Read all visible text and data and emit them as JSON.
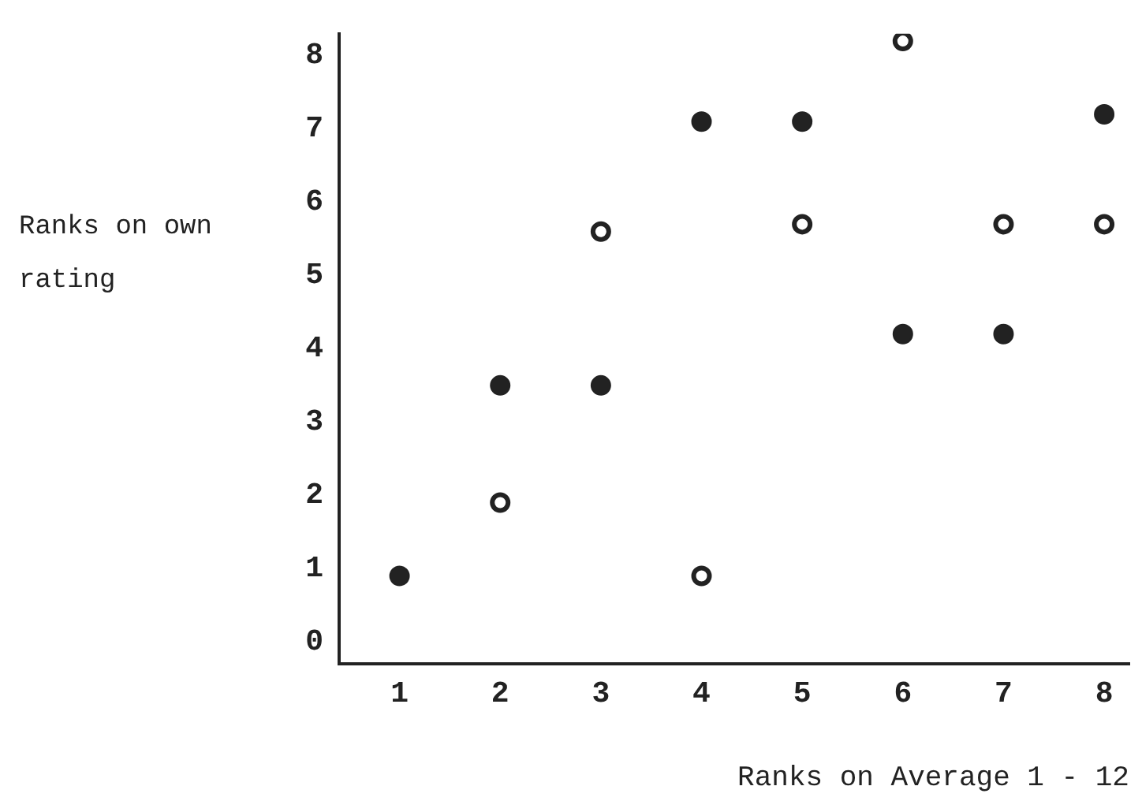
{
  "chart_data": {
    "type": "scatter",
    "xlabel": "Ranks on Average 1 - 12",
    "ylabel": "Ranks on own rating",
    "xlim": [
      0.4,
      8.25
    ],
    "xticks": [
      1,
      2,
      3,
      4,
      5,
      6,
      7,
      8
    ],
    "ylim": [
      -0.3,
      8.3
    ],
    "yticks": [
      0,
      1,
      2,
      3,
      4,
      5,
      6,
      7,
      8
    ],
    "grid": false,
    "legend": false,
    "marker": "circle",
    "series": [
      {
        "color": "#222222",
        "x": [
          1,
          2,
          3,
          4,
          5,
          6,
          7,
          8
        ],
        "values": [
          0.9,
          3.5,
          3.5,
          7.1,
          7.1,
          4.2,
          4.2,
          7.2
        ]
      },
      {
        "color": "#222222",
        "x": [
          2,
          3,
          4,
          5,
          6,
          7,
          8
        ],
        "values": [
          1.9,
          5.6,
          0.9,
          5.7,
          8.2,
          5.7,
          5.7
        ]
      }
    ]
  }
}
